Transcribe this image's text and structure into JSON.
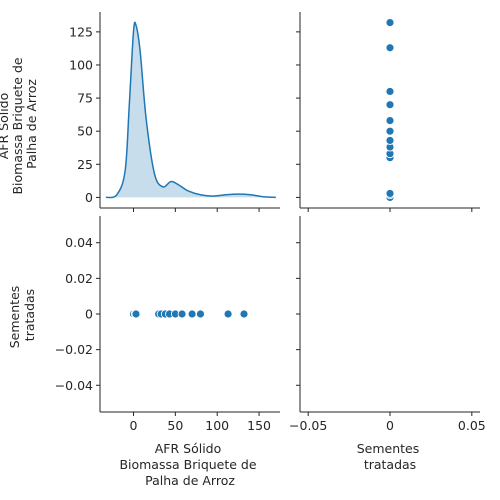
{
  "chart_data": {
    "type": "pairplot",
    "variables": [
      [
        "AFR Sólido",
        "Biomassa Briquete de",
        "Palha de Arroz"
      ],
      [
        "Sementes",
        "tratadas"
      ]
    ],
    "colors": {
      "marker": "#1f77b4",
      "kde_line": "#1f77b4",
      "kde_fill": "#1f77b4"
    },
    "points": {
      "afr": [
        0,
        0,
        2,
        3,
        30,
        33,
        38,
        43,
        50,
        58,
        70,
        80,
        113,
        132
      ],
      "sementes": [
        0,
        0,
        0,
        0,
        0,
        0,
        0,
        0,
        0,
        0,
        0,
        0,
        0,
        0
      ]
    },
    "kde": {
      "x": [
        -33,
        -20,
        -10,
        -5,
        0,
        3,
        8,
        15,
        25,
        35,
        45,
        55,
        65,
        80,
        95,
        110,
        125,
        140,
        155,
        170
      ],
      "density_scaled": [
        0,
        2,
        20,
        70,
        125,
        130,
        110,
        60,
        18,
        8,
        12,
        9,
        5,
        2,
        1,
        2,
        2.5,
        2,
        0.5,
        0
      ]
    },
    "panels": {
      "top_left": {
        "type": "kde",
        "xlim": [
          -40,
          175
        ],
        "ylim": [
          -8,
          140
        ],
        "yticks": [
          0,
          25,
          50,
          75,
          100,
          125
        ]
      },
      "top_right": {
        "type": "scatter",
        "xlim": [
          -0.055,
          0.055
        ],
        "ylim": [
          -8,
          140
        ],
        "x": "sementes",
        "y": "afr"
      },
      "bottom_left": {
        "type": "scatter",
        "xlim": [
          -40,
          175
        ],
        "ylim": [
          -0.055,
          0.055
        ],
        "xticks": [
          0,
          50,
          100,
          150
        ],
        "yticks": [
          -0.04,
          -0.02,
          0.0,
          0.02,
          0.04
        ],
        "x": "afr",
        "y": "sementes"
      },
      "bottom_right": {
        "type": "empty",
        "xlim": [
          -0.055,
          0.055
        ],
        "xticks": [
          -0.05,
          0.0,
          0.05
        ]
      }
    }
  }
}
